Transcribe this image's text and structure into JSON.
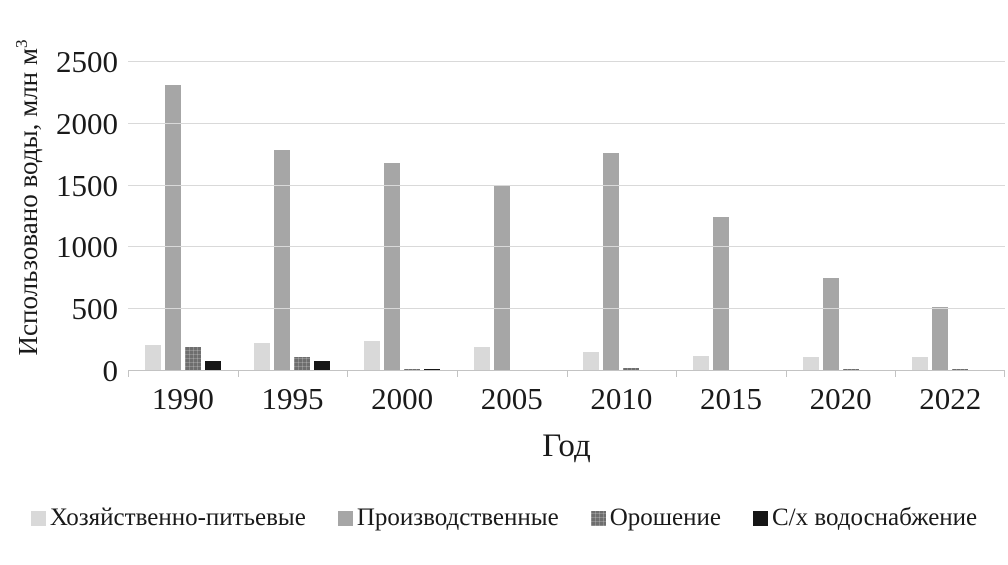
{
  "chart_data": {
    "type": "bar",
    "title": "",
    "xlabel": "Год",
    "ylabel": "Использовано воды, млн м³",
    "categories": [
      "1990",
      "1995",
      "2000",
      "2005",
      "2010",
      "2015",
      "2020",
      "2022"
    ],
    "series": [
      {
        "name": "Хозяйственно-питьевые",
        "color": "#d9d9d9",
        "pattern": false,
        "values": [
          210,
          225,
          245,
          195,
          155,
          120,
          115,
          115
        ]
      },
      {
        "name": "Производственные",
        "color": "#a6a6a6",
        "pattern": false,
        "values": [
          2315,
          1790,
          1680,
          1500,
          1765,
          1250,
          750,
          520
        ]
      },
      {
        "name": "Орошение",
        "color": "#6e6e6e",
        "pattern": true,
        "values": [
          195,
          110,
          20,
          0,
          25,
          5,
          20,
          15
        ]
      },
      {
        "name": "С/х водоснабжение",
        "color": "#161616",
        "pattern": false,
        "values": [
          85,
          85,
          15,
          0,
          0,
          0,
          0,
          0
        ]
      }
    ],
    "ylim": [
      0,
      2500
    ],
    "y_ticks": [
      0,
      500,
      1000,
      1500,
      2000,
      2500
    ],
    "grid": true,
    "legend_position": "bottom"
  },
  "axes": {
    "y_label_text": "Использовано воды, млн м",
    "y_label_sup": "3",
    "x_label_text": "Год"
  }
}
